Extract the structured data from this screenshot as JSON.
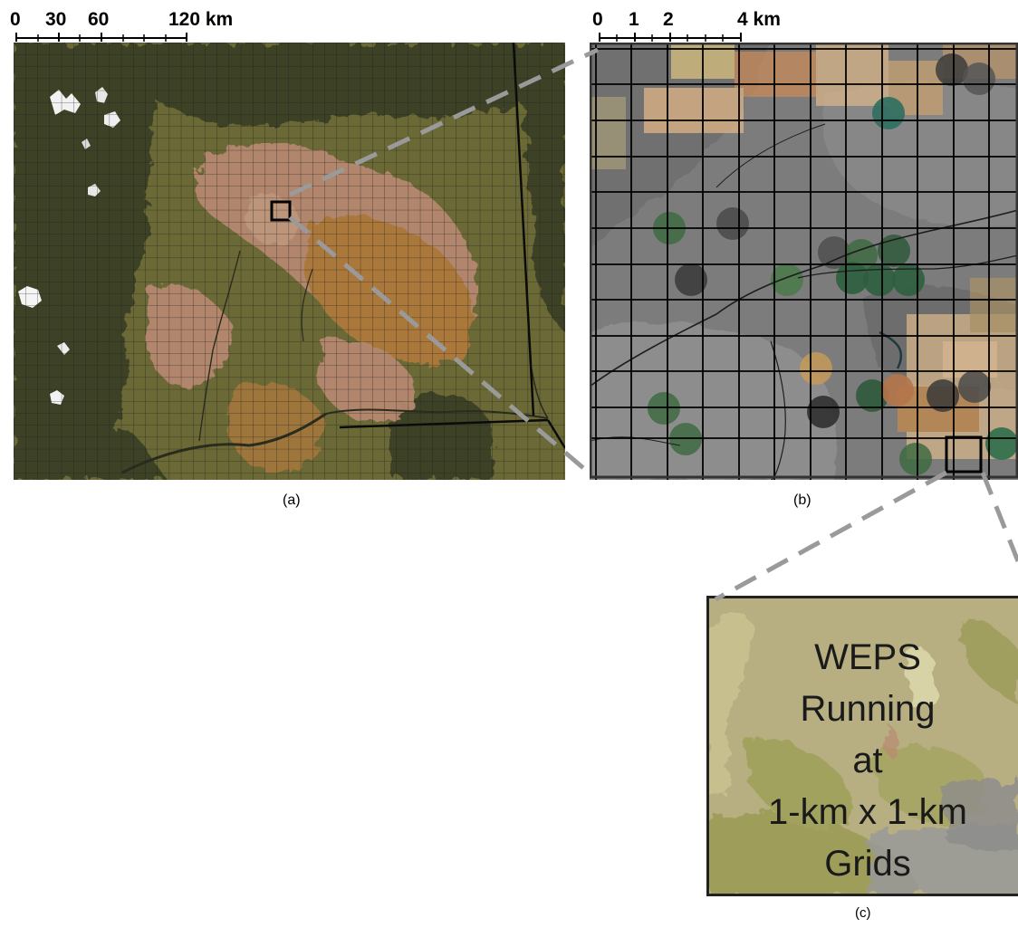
{
  "scale_a": {
    "ticks": [
      "0",
      "30",
      "60",
      "120 km"
    ]
  },
  "scale_b": {
    "ticks": [
      "0",
      "1",
      "2",
      "4 km"
    ]
  },
  "panel_a": {
    "caption": "(a)"
  },
  "panel_b": {
    "caption": "(b)"
  },
  "panel_c": {
    "caption": "(c)",
    "text_lines": [
      "WEPS",
      "Running",
      "at",
      "1-km x 1-km",
      "Grids"
    ]
  },
  "colors": {
    "forest": "#3c4228",
    "grassland": "#6b6a36",
    "cropland_pink": "#b98a72",
    "cropland_orange": "#b27a3d",
    "snow": "#f2f2f2",
    "grid_line": "#1a1a1a",
    "zoom_connector": "#9a9a9a",
    "panel_c_background": "#b7ae82"
  }
}
